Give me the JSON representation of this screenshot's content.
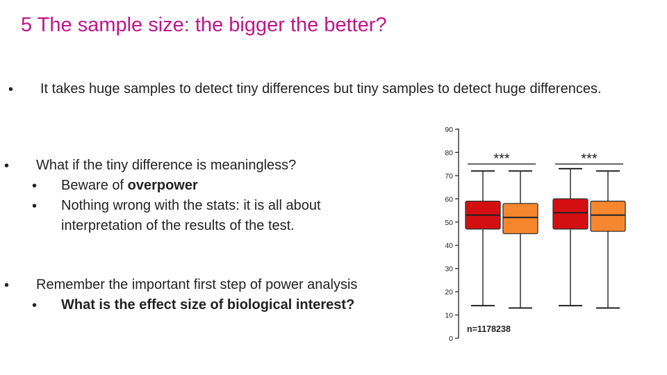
{
  "slide": {
    "title": "5 The sample size: the bigger the better?",
    "bullet_symbol": "•",
    "bullets": [
      {
        "text": "It takes huge samples to detect tiny differences but tiny samples to detect huge differences."
      },
      {
        "text": "What if the tiny difference is meaningless?"
      },
      {
        "text": "Remember the important first step of power analysis"
      }
    ],
    "sub_bullets": {
      "beware_prefix": "Beware of ",
      "beware_bold": "overpower",
      "stats_line1": "Nothing wrong with the stats: it is all about",
      "stats_line2": "interpretation of the results of the test.",
      "effect_size": "What is the effect size of biological interest?"
    }
  },
  "chart_data": {
    "type": "boxplot",
    "y_ticks": [
      "90",
      "80",
      "70",
      "60",
      "50",
      "40",
      "30",
      "20",
      "10",
      "0"
    ],
    "ylim": [
      0,
      90
    ],
    "annotation": "n=1178238",
    "groups": [
      {
        "significance": "***",
        "boxes": [
          {
            "color": "#d40f12",
            "whisker_low": 14,
            "q1": 47,
            "median": 53,
            "q3": 59,
            "whisker_high": 72
          },
          {
            "color": "#f6872f",
            "whisker_low": 13,
            "q1": 45,
            "median": 52,
            "q3": 58,
            "whisker_high": 72
          }
        ]
      },
      {
        "significance": "***",
        "boxes": [
          {
            "color": "#d40f12",
            "whisker_low": 14,
            "q1": 47,
            "median": 54,
            "q3": 60,
            "whisker_high": 73
          },
          {
            "color": "#f6872f",
            "whisker_low": 13,
            "q1": 46,
            "median": 53,
            "q3": 59,
            "whisker_high": 72
          }
        ]
      }
    ]
  }
}
